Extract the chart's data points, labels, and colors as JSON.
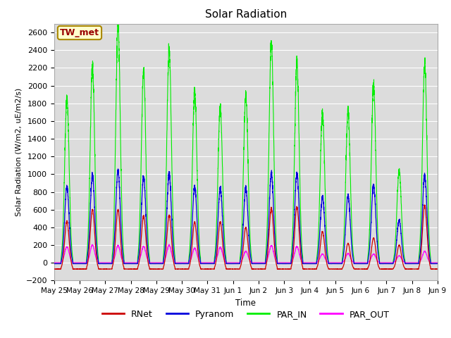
{
  "title": "Solar Radiation",
  "ylabel": "Solar Radiation (W/m2, uE/m2/s)",
  "xlabel": "Time",
  "ylim": [
    -200,
    2700
  ],
  "yticks": [
    -200,
    0,
    200,
    400,
    600,
    800,
    1000,
    1200,
    1400,
    1600,
    1800,
    2000,
    2200,
    2400,
    2600
  ],
  "bg_color": "#dcdcdc",
  "legend_label": "TW_met",
  "line_colors": {
    "RNet": "#cc0000",
    "Pyranom": "#0000dd",
    "PAR_IN": "#00ee00",
    "PAR_OUT": "#ff00ff"
  },
  "n_days": 16,
  "day_labels": [
    "May 25",
    "May 26",
    "May 27",
    "May 28",
    "May 29",
    "May 30",
    "May 31",
    "Jun 1",
    "Jun 2",
    "Jun 3",
    "Jun 4",
    "Jun 5",
    "Jun 6",
    "Jun 7",
    "Jun 8",
    "Jun 9"
  ],
  "par_in_peaks": [
    1860,
    2220,
    2700,
    2150,
    2400,
    1950,
    1760,
    1900,
    2500,
    2250,
    1700,
    1700,
    2000,
    1050,
    2250,
    50
  ],
  "pyranom_peaks": [
    860,
    990,
    1050,
    970,
    1010,
    860,
    845,
    840,
    1010,
    1010,
    740,
    760,
    880,
    480,
    990,
    50
  ],
  "rnet_peaks": [
    470,
    600,
    600,
    530,
    540,
    460,
    460,
    400,
    620,
    630,
    350,
    220,
    280,
    200,
    650,
    30
  ],
  "par_out_peaks": [
    180,
    200,
    195,
    185,
    200,
    165,
    175,
    130,
    195,
    185,
    100,
    105,
    100,
    80,
    130,
    20
  ],
  "rnet_night": -70,
  "par_in_night": -5,
  "pyranom_night": -10,
  "par_out_night": 2
}
